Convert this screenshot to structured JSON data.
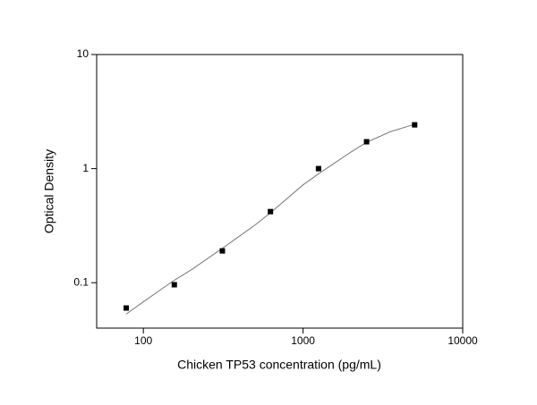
{
  "chart_data": {
    "type": "scatter",
    "x_label": "Chicken TP53 concentration (pg/mL)",
    "y_label": "Optical Density",
    "x": [
      78.125,
      156.25,
      312.5,
      625,
      1250,
      2500,
      5000
    ],
    "values": [
      0.06,
      0.096,
      0.19,
      0.42,
      1.0,
      1.72,
      2.42
    ],
    "color": "#000000",
    "fit": {
      "x": [
        78,
        100,
        156,
        200,
        312,
        500,
        625,
        1000,
        1250,
        2000,
        2500,
        3500,
        5000
      ],
      "values": [
        0.053,
        0.068,
        0.105,
        0.13,
        0.2,
        0.32,
        0.41,
        0.72,
        0.9,
        1.4,
        1.7,
        2.1,
        2.45
      ],
      "color": "#777777"
    },
    "x_log": true,
    "y_log": true,
    "xlim": [
      51,
      10000
    ],
    "ylim": [
      0.04,
      10
    ],
    "xticks": [
      100,
      1000,
      10000
    ],
    "yticks": [
      0.1,
      1,
      10
    ]
  }
}
